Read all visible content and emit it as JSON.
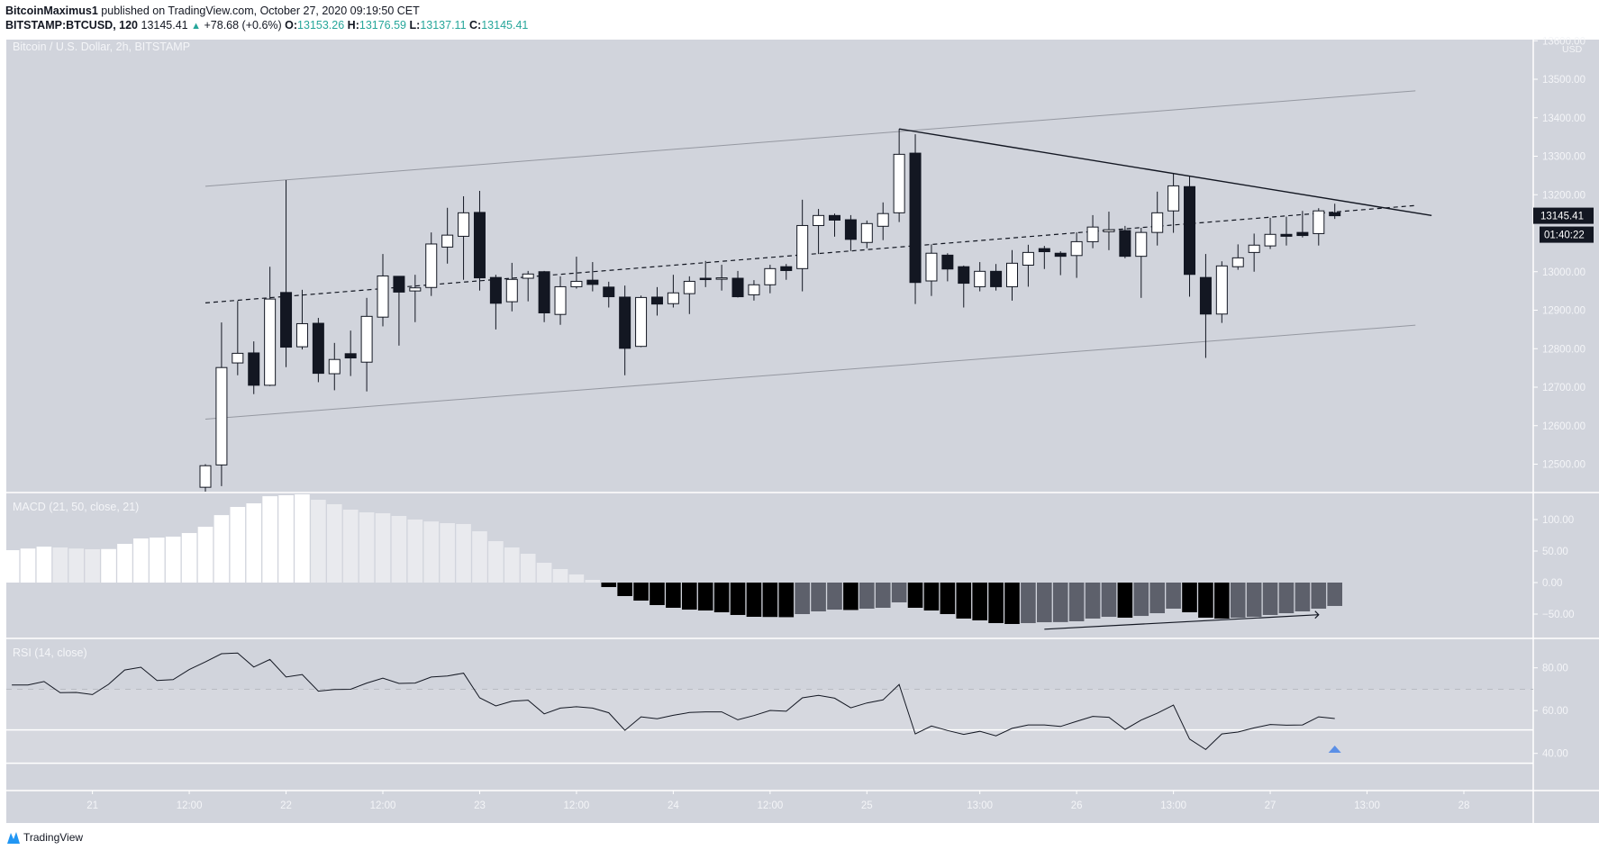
{
  "header": {
    "author": "BitcoinMaximus1",
    "published": "published on TradingView.com, October 27, 2020 09:19:50 CET",
    "symbol": "BITSTAMP:BTCUSD, 120",
    "last": "13145.41",
    "change": "+78.68 (+0.6%)",
    "o_label": "O:",
    "o": "13153.26",
    "h_label": "H:",
    "h": "13176.59",
    "l_label": "L:",
    "l": "13137.11",
    "c_label": "C:",
    "c": "13145.41",
    "up_icon": "triangle-up-icon"
  },
  "panes": {
    "price_title": "Bitcoin / U.S. Dollar, 2h, BITSTAMP",
    "macd_title": "MACD (21, 50, close, 21)",
    "rsi_title": "RSI (14, close)"
  },
  "colors": {
    "background": "#d1d4dc",
    "candle_up": "#ffffff",
    "candle_down": "#131722",
    "macd_pos_rising": "#ffffff",
    "macd_pos_falling": "#e9eaee",
    "macd_neg_falling": "#000000",
    "macd_neg_rising": "#5d606b",
    "accent_teal": "#26a69a",
    "marker_blue": "#5b8fe6",
    "price_tag": "#131722"
  },
  "chart_data": {
    "type": "candlestick",
    "interval": "2h",
    "price_axis": {
      "unit": "USD",
      "ticks": [
        "13600.00",
        "13500.00",
        "13400.00",
        "13300.00",
        "13200.00",
        "13000.00",
        "12900.00",
        "12800.00",
        "12700.00",
        "12600.00",
        "12500.00"
      ],
      "tick_values": [
        13600,
        13500,
        13400,
        13300,
        13200,
        13000,
        12900,
        12800,
        12700,
        12600,
        12500
      ],
      "last_price_label": "13145.41",
      "last_price": 13145.41,
      "countdown": "01:40:22"
    },
    "time_axis": {
      "ticks": [
        {
          "label": "21",
          "bar": -7
        },
        {
          "label": "12:00",
          "bar": -1
        },
        {
          "label": "22",
          "bar": 5
        },
        {
          "label": "12:00",
          "bar": 11
        },
        {
          "label": "23",
          "bar": 17
        },
        {
          "label": "12:00",
          "bar": 23
        },
        {
          "label": "24",
          "bar": 29
        },
        {
          "label": "12:00",
          "bar": 35
        },
        {
          "label": "25",
          "bar": 41
        },
        {
          "label": "13:00",
          "bar": 48
        },
        {
          "label": "26",
          "bar": 54
        },
        {
          "label": "13:00",
          "bar": 60
        },
        {
          "label": "27",
          "bar": 66
        },
        {
          "label": "13:00",
          "bar": 72
        },
        {
          "label": "28",
          "bar": 78
        }
      ]
    },
    "candles_ohlc": [
      [
        12440,
        12500,
        12420,
        12496
      ],
      [
        12498,
        12868,
        12443,
        12751
      ],
      [
        12763,
        12924,
        12731,
        12788
      ],
      [
        12789,
        12819,
        12682,
        12705
      ],
      [
        12705,
        13013,
        12703,
        12929
      ],
      [
        12946,
        13238,
        12752,
        12804
      ],
      [
        12805,
        12953,
        12798,
        12865
      ],
      [
        12866,
        12880,
        12713,
        12736
      ],
      [
        12735,
        12815,
        12692,
        12772
      ],
      [
        12787,
        12847,
        12729,
        12776
      ],
      [
        12765,
        12932,
        12689,
        12884
      ],
      [
        12882,
        13046,
        12858,
        12989
      ],
      [
        12988,
        12988,
        12808,
        12947
      ],
      [
        12950,
        12992,
        12869,
        12958
      ],
      [
        12959,
        13102,
        12937,
        13072
      ],
      [
        13064,
        13166,
        13021,
        13095
      ],
      [
        13092,
        13196,
        12979,
        13153
      ],
      [
        13154,
        13210,
        12951,
        12984
      ],
      [
        12985,
        12992,
        12850,
        12918
      ],
      [
        12922,
        13023,
        12897,
        12980
      ],
      [
        12983,
        13002,
        12923,
        12994
      ],
      [
        13000,
        13002,
        12869,
        12893
      ],
      [
        12889,
        12988,
        12862,
        12961
      ],
      [
        12961,
        13039,
        12956,
        12975
      ],
      [
        12978,
        13025,
        12949,
        12967
      ],
      [
        12960,
        12974,
        12907,
        12935
      ],
      [
        12934,
        12964,
        12731,
        12801
      ],
      [
        12806,
        12938,
        12804,
        12933
      ],
      [
        12934,
        12960,
        12886,
        12916
      ],
      [
        12917,
        12992,
        12907,
        12945
      ],
      [
        12943,
        12988,
        12890,
        12975
      ],
      [
        12983,
        13028,
        12960,
        12981
      ],
      [
        12982,
        13018,
        12951,
        12984
      ],
      [
        12983,
        13002,
        12933,
        12935
      ],
      [
        12940,
        12978,
        12925,
        12966
      ],
      [
        12966,
        13018,
        12944,
        13008
      ],
      [
        13013,
        13020,
        12979,
        13003
      ],
      [
        13008,
        13187,
        12949,
        13120
      ],
      [
        13120,
        13163,
        13046,
        13146
      ],
      [
        13146,
        13151,
        13091,
        13134
      ],
      [
        13135,
        13147,
        13054,
        13084
      ],
      [
        13076,
        13133,
        13061,
        13125
      ],
      [
        13118,
        13180,
        13082,
        13151
      ],
      [
        13153,
        13371,
        13129,
        13305
      ],
      [
        13308,
        13357,
        12916,
        12972
      ],
      [
        12976,
        13071,
        12937,
        13048
      ],
      [
        13043,
        13048,
        12975,
        13007
      ],
      [
        13013,
        13016,
        12907,
        12970
      ],
      [
        12961,
        13025,
        12949,
        13001
      ],
      [
        13001,
        13020,
        12951,
        12961
      ],
      [
        12961,
        13056,
        12925,
        13022
      ],
      [
        13017,
        13070,
        12961,
        13050
      ],
      [
        13060,
        13067,
        13007,
        13052
      ],
      [
        13048,
        13053,
        12991,
        13040
      ],
      [
        13042,
        13102,
        12984,
        13078
      ],
      [
        13078,
        13147,
        13061,
        13116
      ],
      [
        13104,
        13156,
        13056,
        13109
      ],
      [
        13107,
        13119,
        13035,
        13040
      ],
      [
        13040,
        13114,
        12932,
        13102
      ],
      [
        13102,
        13208,
        13068,
        13153
      ],
      [
        13158,
        13256,
        13101,
        13223
      ],
      [
        13221,
        13247,
        12935,
        12993
      ],
      [
        12985,
        13046,
        12776,
        12890
      ],
      [
        12890,
        13027,
        12867,
        13015
      ],
      [
        13013,
        13071,
        13005,
        13036
      ],
      [
        13050,
        13099,
        13000,
        13069
      ],
      [
        13067,
        13140,
        13059,
        13097
      ],
      [
        13097,
        13143,
        13068,
        13092
      ],
      [
        13102,
        13158,
        13089,
        13094
      ],
      [
        13099,
        13165,
        13068,
        13158
      ],
      [
        13153.26,
        13176.59,
        13137.11,
        13145.41
      ]
    ],
    "drawings": [
      {
        "kind": "channel-upper",
        "style": "solid-gray",
        "from": {
          "bar": 0,
          "price": 13222
        },
        "to": {
          "bar": 75,
          "price": 13470
        }
      },
      {
        "kind": "channel-lower",
        "style": "solid-gray",
        "from": {
          "bar": 0,
          "price": 12617
        },
        "to": {
          "bar": 75,
          "price": 12861
        }
      },
      {
        "kind": "channel-mid",
        "style": "dashed",
        "from": {
          "bar": 0,
          "price": 12919
        },
        "to": {
          "bar": 75,
          "price": 13172
        }
      },
      {
        "kind": "descending-resistance",
        "style": "solid-black",
        "from": {
          "bar": 43,
          "price": 13371
        },
        "to": {
          "bar": 76,
          "price": 13146
        }
      }
    ],
    "macd": {
      "axis_ticks": [
        "100.00",
        "50.00",
        "0.00",
        "−50.00"
      ],
      "axis_values": [
        100,
        50,
        0,
        -50
      ],
      "first_bar": -12,
      "histogram": [
        51.4,
        54,
        57,
        55.7,
        54,
        52.9,
        53.2,
        61.4,
        70,
        71.4,
        72.9,
        78.6,
        88.6,
        107,
        120,
        125.7,
        137,
        138.6,
        140,
        131.4,
        124.3,
        115.7,
        111.4,
        110,
        105.7,
        100,
        97,
        94.3,
        92.9,
        81.4,
        65.7,
        55.7,
        45.7,
        31.4,
        21.4,
        12.9,
        4.3,
        -7.1,
        -21.4,
        -28.6,
        -35.7,
        -40,
        -42.9,
        -44.3,
        -47.1,
        -51.4,
        -54.3,
        -54.6,
        -54.9,
        -50,
        -45.7,
        -42.9,
        -43.5,
        -41.4,
        -40,
        -31.4,
        -40,
        -44.3,
        -50,
        -57.1,
        -60,
        -64.3,
        -65.7,
        -64.3,
        -62.9,
        -62.7,
        -61.4,
        -57.1,
        -54.3,
        -55.7,
        -52.9,
        -48.6,
        -41.4,
        -47.1,
        -55.7,
        -57.1,
        -55.7,
        -54.3,
        -51.4,
        -48.6,
        -45.7,
        -41.4,
        -37.1
      ],
      "arrow": {
        "from": {
          "bar": 52,
          "value": -74
        },
        "to": {
          "bar": 69,
          "value": -51
        }
      }
    },
    "rsi": {
      "axis_ticks": [
        "80.00",
        "60.00",
        "40.00"
      ],
      "axis_values": [
        80,
        60,
        40
      ],
      "first_bar": -12,
      "values": [
        72.0,
        72.0,
        73.6,
        68.4,
        68.5,
        67.5,
        72.3,
        79.0,
        80.3,
        74.1,
        74.5,
        79.2,
        82.8,
        86.6,
        86.9,
        80.4,
        83.9,
        75.7,
        76.9,
        69.1,
        69.9,
        70.0,
        72.9,
        75.2,
        72.7,
        72.9,
        75.7,
        76.2,
        77.5,
        66.0,
        62.2,
        64.4,
        64.9,
        58.5,
        61.2,
        61.8,
        61.2,
        59.0,
        50.8,
        57.1,
        56.2,
        57.8,
        59.1,
        59.4,
        59.4,
        55.7,
        57.7,
        60.1,
        59.7,
        66.0,
        67.1,
        65.8,
        61.3,
        63.6,
        65.0,
        72.2,
        49.1,
        52.8,
        50.7,
        48.9,
        50.3,
        48.2,
        51.7,
        53.3,
        53.3,
        52.6,
        55.0,
        57.3,
        56.9,
        51.2,
        55.6,
        58.8,
        62.6,
        46.7,
        41.8,
        49.1,
        50.0,
        51.9,
        53.5,
        53.2,
        53.3,
        57.1,
        56.3
      ],
      "overbought_dashed": 70,
      "horizontal_lines": [
        51,
        35.4
      ],
      "marker": {
        "icon": "triangle-up-icon",
        "bar": 70,
        "value": 42
      }
    }
  },
  "footer": {
    "logo_text": "TradingView",
    "logo_icon": "tradingview-logo-icon"
  }
}
